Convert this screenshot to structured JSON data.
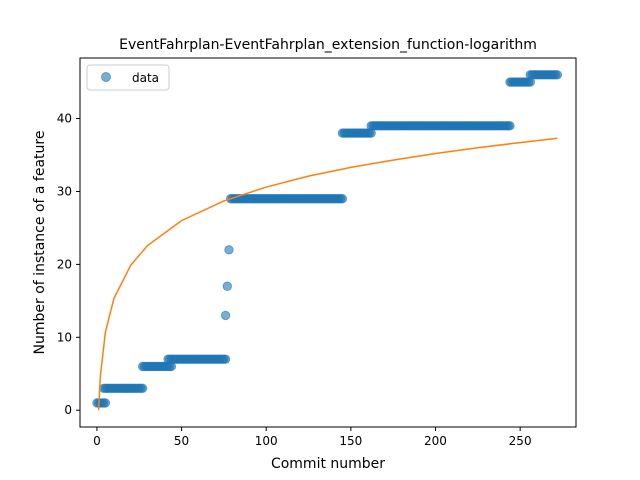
{
  "chart_data": {
    "type": "scatter",
    "title": "EventFahrplan-EventFahrplan_extension_function-logarithm",
    "xlabel": "Commit number",
    "ylabel": "Number of instance of a feature",
    "xlim": [
      -10,
      283
    ],
    "ylim": [
      -2.3,
      48.3
    ],
    "x_ticks": [
      0,
      50,
      100,
      150,
      200,
      250
    ],
    "y_ticks": [
      0,
      10,
      20,
      30,
      40
    ],
    "grid": false,
    "legend": {
      "position": "top-left",
      "entries": [
        "data"
      ]
    },
    "colors": {
      "data": "#1f77b4",
      "fit": "#ff7f0e"
    },
    "series": [
      {
        "name": "data",
        "kind": "points",
        "segments": [
          {
            "x_start": 0,
            "x_end": 5,
            "y": 1
          },
          {
            "x_start": 4,
            "x_end": 27,
            "y": 3
          },
          {
            "x_start": 27,
            "x_end": 44,
            "y": 6
          },
          {
            "x_start": 42,
            "x_end": 76,
            "y": 7
          },
          {
            "x_start": 79,
            "x_end": 145,
            "y": 29
          },
          {
            "x_start": 145,
            "x_end": 162,
            "y": 38
          },
          {
            "x_start": 162,
            "x_end": 244,
            "y": 39
          },
          {
            "x_start": 244,
            "x_end": 256,
            "y": 45
          },
          {
            "x_start": 256,
            "x_end": 272,
            "y": 46
          }
        ],
        "points": [
          [
            76,
            13
          ],
          [
            77,
            17
          ],
          [
            78,
            22
          ]
        ]
      },
      {
        "kind": "logarithmic fit",
        "x": [
          1,
          2,
          5,
          10,
          20,
          30,
          50,
          75,
          100,
          125,
          150,
          175,
          200,
          225,
          250,
          272
        ],
        "y": [
          0,
          4.6,
          10.7,
          15.3,
          19.9,
          22.6,
          26.0,
          28.7,
          30.6,
          32.1,
          33.3,
          34.3,
          35.2,
          36.0,
          36.7,
          37.3
        ]
      }
    ]
  }
}
